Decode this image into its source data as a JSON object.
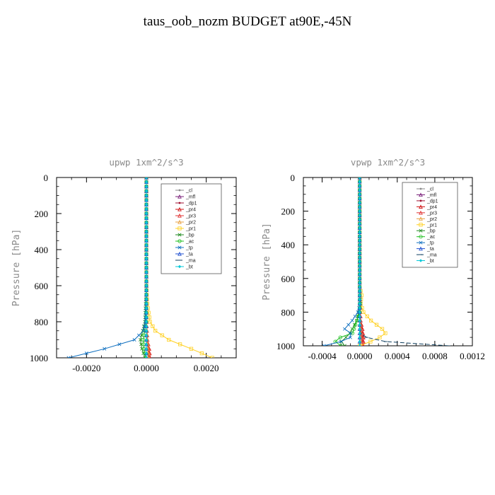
{
  "page": {
    "title": "taus_oob_nozm  BUDGET at90E,-45N"
  },
  "legend_entries": [
    "_cl",
    "_mfl",
    "_dp1",
    "_pr4",
    "_pr3",
    "_pr2",
    "_pr1",
    "_bp",
    "_ac",
    "_tp",
    "_ta",
    "_ma",
    "_bt"
  ],
  "chart_data": [
    {
      "type": "line",
      "title": "upwp  1xm^2/s^3",
      "xlabel": "",
      "ylabel": "Pressure [hPa]",
      "xlim": [
        -0.003,
        0.003
      ],
      "ylim": [
        1000,
        0
      ],
      "xticks": [
        "-0.0020",
        "0.0000",
        "0.0020"
      ],
      "yticks": [
        "0",
        "200",
        "400",
        "600",
        "800",
        "1000"
      ],
      "legend_position": "top-right",
      "series": [
        {
          "name": "_cl",
          "color": "#8a8a8a",
          "marker": "dot",
          "pressure": [
            0,
            200,
            400,
            600,
            800,
            1000
          ],
          "values": [
            0,
            0,
            0,
            0,
            0,
            0
          ]
        },
        {
          "name": "_mfl",
          "color": "#7a1f7a",
          "marker": "tri",
          "pressure": [
            0,
            200,
            400,
            600,
            800,
            1000
          ],
          "values": [
            0,
            0,
            0,
            0,
            0,
            0
          ]
        },
        {
          "name": "_dp1",
          "color": "#a01030",
          "marker": "dot",
          "pressure": [
            0,
            400,
            800,
            900,
            950,
            1000
          ],
          "values": [
            0,
            0,
            0,
            2e-05,
            5e-05,
            6e-05
          ]
        },
        {
          "name": "_pr4",
          "color": "#d01010",
          "marker": "tri",
          "pressure": [
            0,
            400,
            800,
            900,
            950,
            1000
          ],
          "values": [
            0,
            0,
            0,
            3e-05,
            8e-05,
            0.0001
          ]
        },
        {
          "name": "_pr3",
          "color": "#e03030",
          "marker": "tri",
          "pressure": [
            0,
            400,
            800,
            900,
            950,
            1000
          ],
          "values": [
            0,
            0,
            1e-05,
            4e-05,
            0.0001,
            0.00013
          ]
        },
        {
          "name": "_pr2",
          "color": "#e8a040",
          "marker": "tri",
          "pressure": [
            0,
            400,
            800,
            900,
            950,
            1000
          ],
          "values": [
            0,
            0,
            1e-05,
            3e-05,
            6e-05,
            8e-05
          ]
        },
        {
          "name": "_pr1",
          "color": "#ffd020",
          "marker": "sq",
          "pressure": [
            0,
            600,
            700,
            800,
            850,
            900,
            950,
            1000
          ],
          "values": [
            0,
            0,
            3e-05,
            0.00012,
            0.0003,
            0.00075,
            0.0015,
            0.0022
          ]
        },
        {
          "name": "_bp",
          "color": "#208a20",
          "marker": "x",
          "pressure": [
            0,
            600,
            800,
            850,
            900,
            950,
            1000
          ],
          "values": [
            0,
            0,
            -5e-05,
            -0.00012,
            -0.0002,
            -0.00015,
            -5e-05
          ]
        },
        {
          "name": "_ac",
          "color": "#20c020",
          "marker": "circ",
          "pressure": [
            0,
            800,
            850,
            900,
            950,
            1000
          ],
          "values": [
            0,
            0,
            -6e-05,
            -0.0001,
            -8e-05,
            -2e-05
          ]
        },
        {
          "name": "_tp",
          "color": "#1070c0",
          "marker": "x",
          "pressure": [
            0,
            700,
            800,
            850,
            900,
            950,
            1000
          ],
          "values": [
            0,
            0,
            -3e-05,
            -0.0001,
            -0.0004,
            -0.0014,
            -0.0026
          ]
        },
        {
          "name": "_ta",
          "color": "#2050d0",
          "marker": "tri",
          "pressure": [
            0,
            1000
          ],
          "values": [
            0,
            0
          ]
        },
        {
          "name": "_ma",
          "color": "#104060",
          "marker": "dash",
          "pressure": [
            0,
            1000
          ],
          "values": [
            0,
            0
          ]
        },
        {
          "name": "_bt",
          "color": "#00c8d8",
          "marker": "diamond",
          "pressure": [
            0,
            1000
          ],
          "values": [
            0,
            0
          ]
        }
      ]
    },
    {
      "type": "line",
      "title": "vpwp  1xm^2/s^3",
      "xlabel": "",
      "ylabel": "Pressure [hPa]",
      "xlim": [
        -0.0006,
        0.0012
      ],
      "ylim": [
        1000,
        0
      ],
      "xticks": [
        "-0.0004",
        "0.0000",
        "0.0004",
        "0.0008",
        "0.0012"
      ],
      "yticks": [
        "0",
        "200",
        "400",
        "600",
        "800",
        "1000"
      ],
      "legend_position": "top-right",
      "series": [
        {
          "name": "_cl",
          "color": "#8a8a8a",
          "marker": "dot",
          "pressure": [
            0,
            200,
            400,
            600,
            800,
            1000
          ],
          "values": [
            0,
            0,
            0,
            0,
            0,
            0
          ]
        },
        {
          "name": "_mfl",
          "color": "#7a1f7a",
          "marker": "tri",
          "pressure": [
            0,
            200,
            400,
            600,
            800,
            1000
          ],
          "values": [
            0,
            0,
            0,
            0,
            0,
            0
          ]
        },
        {
          "name": "_dp1",
          "color": "#a01030",
          "marker": "dot",
          "pressure": [
            0,
            600,
            800,
            900,
            950,
            1000
          ],
          "values": [
            0,
            0,
            0,
            1e-05,
            2e-05,
            3e-05
          ]
        },
        {
          "name": "_pr4",
          "color": "#d01010",
          "marker": "tri",
          "pressure": [
            0,
            600,
            850,
            900,
            950,
            1000
          ],
          "values": [
            0,
            0,
            1e-05,
            3e-05,
            4e-05,
            4e-05
          ]
        },
        {
          "name": "_pr3",
          "color": "#e03030",
          "marker": "tri",
          "pressure": [
            0,
            600,
            850,
            900,
            950,
            1000
          ],
          "values": [
            0,
            0,
            1e-05,
            2e-05,
            3e-05,
            3e-05
          ]
        },
        {
          "name": "_pr2",
          "color": "#e8a040",
          "marker": "tri",
          "pressure": [
            0,
            600,
            800,
            900,
            950,
            1000
          ],
          "values": [
            0,
            0,
            0,
            1e-05,
            1e-05,
            1e-05
          ]
        },
        {
          "name": "_pr1",
          "color": "#ffd020",
          "marker": "sq",
          "pressure": [
            0,
            650,
            700,
            750,
            800,
            850,
            900,
            930,
            960,
            990,
            1000
          ],
          "values": [
            0,
            0,
            2e-05,
            1e-05,
            4e-05,
            0.00012,
            0.00024,
            0.00028,
            0.00018,
            5e-05,
            0.0
          ]
        },
        {
          "name": "_bp",
          "color": "#208a20",
          "marker": "x",
          "pressure": [
            0,
            700,
            750,
            800,
            850,
            900,
            940,
            970,
            1000
          ],
          "values": [
            0,
            0,
            1e-05,
            -1e-05,
            -3e-05,
            -8e-05,
            -0.00012,
            -0.0002,
            -0.00016
          ]
        },
        {
          "name": "_ac",
          "color": "#20c020",
          "marker": "circ",
          "pressure": [
            0,
            800,
            850,
            900,
            930,
            960,
            990,
            1000
          ],
          "values": [
            0,
            0,
            -3e-05,
            -6e-05,
            -8e-05,
            -0.00027,
            -0.00025,
            -0.0002
          ]
        },
        {
          "name": "_tp",
          "color": "#1070c0",
          "marker": "x",
          "pressure": [
            0,
            760,
            800,
            850,
            900,
            940,
            980,
            1000
          ],
          "values": [
            0,
            0,
            -2e-05,
            -8e-05,
            -0.00016,
            -6e-05,
            -0.00022,
            -0.00038
          ]
        },
        {
          "name": "_ta",
          "color": "#2050d0",
          "marker": "tri",
          "pressure": [
            0,
            1000
          ],
          "values": [
            0,
            0
          ]
        },
        {
          "name": "_ma",
          "color": "#104060",
          "marker": "dash",
          "pressure": [
            0,
            900,
            940,
            970,
            990,
            1000
          ],
          "values": [
            0,
            0,
            1e-05,
            0.0002,
            0.0005,
            0.00095
          ]
        },
        {
          "name": "_bt",
          "color": "#00c8d8",
          "marker": "diamond",
          "pressure": [
            0,
            1000
          ],
          "values": [
            0,
            0
          ]
        }
      ]
    }
  ]
}
